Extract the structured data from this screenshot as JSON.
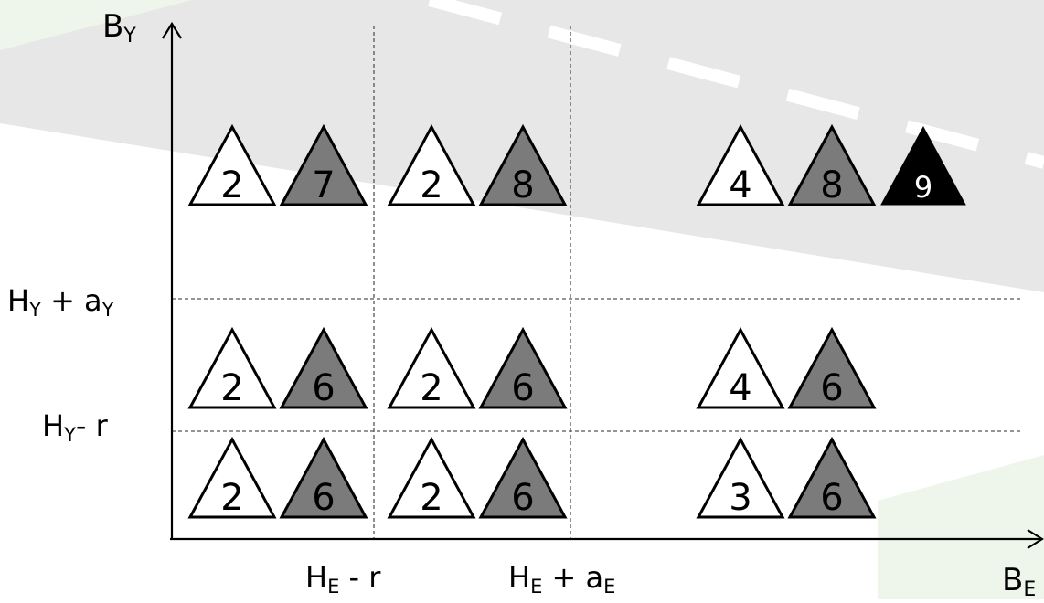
{
  "colors": {
    "background": "#ffffff",
    "road": "#e7e7e7",
    "road_marking": "#ffffff",
    "green_tint": "#eef6ec",
    "axis": "#000000",
    "grid": "#555555",
    "outline_triangle_fill": "#ffffff",
    "gray_triangle_fill": "#7b7b7b",
    "black_triangle_fill": "#000000",
    "black_triangle_text": "#ffffff"
  },
  "axes": {
    "y_label": {
      "main": "B",
      "sub": "Y"
    },
    "x_label": {
      "main": "B",
      "sub": "E"
    },
    "y_thresholds": [
      {
        "main": "H",
        "sub": "Y",
        "rest": " + a",
        "rest_sub": "Y"
      },
      {
        "main": "H",
        "sub": "Y",
        "rest": "- r",
        "rest_sub": ""
      }
    ],
    "x_thresholds": [
      {
        "main": "H",
        "sub": "E",
        "rest": " - r",
        "rest_sub": ""
      },
      {
        "main": "H",
        "sub": "E",
        "rest": " + a",
        "rest_sub": "E"
      }
    ]
  },
  "cells": [
    {
      "row": "top",
      "col": "left",
      "triangles": [
        {
          "style": "outline",
          "label": "2"
        },
        {
          "style": "gray",
          "label": "7"
        }
      ]
    },
    {
      "row": "top",
      "col": "middle",
      "triangles": [
        {
          "style": "outline",
          "label": "2"
        },
        {
          "style": "gray",
          "label": "8"
        }
      ]
    },
    {
      "row": "top",
      "col": "right",
      "triangles": [
        {
          "style": "outline",
          "label": "4"
        },
        {
          "style": "gray",
          "label": "8"
        },
        {
          "style": "black",
          "label": "9"
        }
      ]
    },
    {
      "row": "middle",
      "col": "left",
      "triangles": [
        {
          "style": "outline",
          "label": "2"
        },
        {
          "style": "gray",
          "label": "6"
        }
      ]
    },
    {
      "row": "middle",
      "col": "middle",
      "triangles": [
        {
          "style": "outline",
          "label": "2"
        },
        {
          "style": "gray",
          "label": "6"
        }
      ]
    },
    {
      "row": "middle",
      "col": "right",
      "triangles": [
        {
          "style": "outline",
          "label": "4"
        },
        {
          "style": "gray",
          "label": "6"
        }
      ]
    },
    {
      "row": "bottom",
      "col": "left",
      "triangles": [
        {
          "style": "outline",
          "label": "2"
        },
        {
          "style": "gray",
          "label": "6"
        }
      ]
    },
    {
      "row": "bottom",
      "col": "middle",
      "triangles": [
        {
          "style": "outline",
          "label": "2"
        },
        {
          "style": "gray",
          "label": "6"
        }
      ]
    },
    {
      "row": "bottom",
      "col": "right",
      "triangles": [
        {
          "style": "outline",
          "label": "3"
        },
        {
          "style": "gray",
          "label": "6"
        }
      ]
    }
  ]
}
